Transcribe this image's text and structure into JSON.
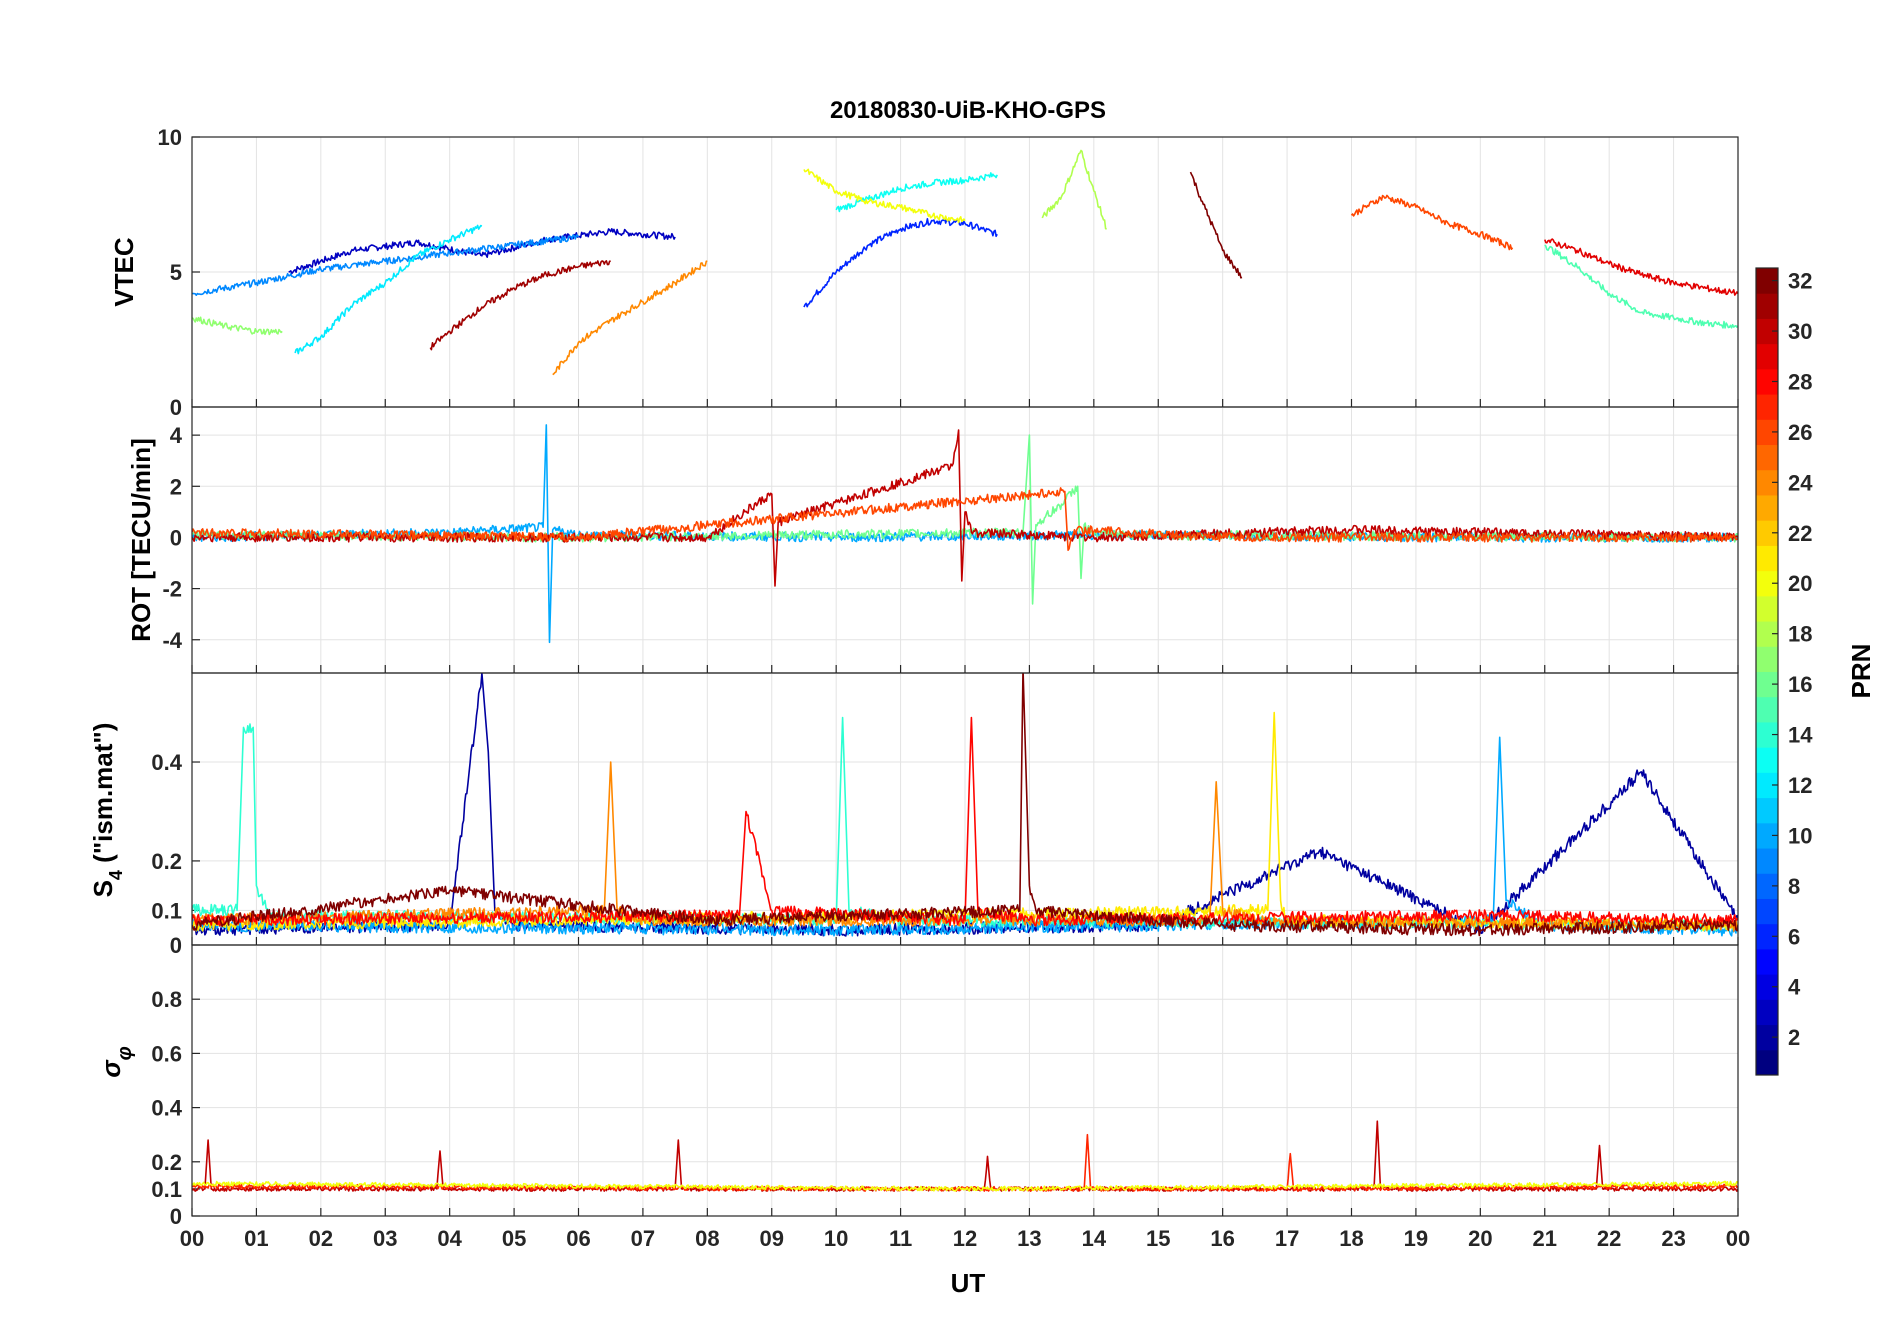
{
  "chart_data": {
    "type": "line",
    "title": "20180830-UiB-KHO-GPS",
    "xlabel": "UT",
    "x_range": [
      0,
      24
    ],
    "x_tick_labels": [
      "00",
      "01",
      "02",
      "03",
      "04",
      "05",
      "06",
      "07",
      "08",
      "09",
      "10",
      "11",
      "12",
      "13",
      "14",
      "15",
      "16",
      "17",
      "18",
      "19",
      "20",
      "21",
      "22",
      "23",
      "00"
    ],
    "colorbar": {
      "label": "PRN",
      "colormap": "jet",
      "range": [
        1,
        32
      ],
      "tick_labels": [
        "2",
        "4",
        "6",
        "8",
        "10",
        "12",
        "14",
        "16",
        "18",
        "20",
        "22",
        "24",
        "26",
        "28",
        "30",
        "32"
      ]
    },
    "panels": [
      {
        "id": "vtec",
        "ylabel": "VTEC",
        "ylim": [
          0,
          10
        ],
        "y_tick_labels": [
          "0",
          "5",
          "10"
        ],
        "series": [
          {
            "prn": 3,
            "x": [
              1.5,
              2.5,
              3.5,
              4.5,
              5.5,
              6.5,
              7.5
            ],
            "y": [
              5.0,
              5.8,
              6.1,
              5.6,
              6.2,
              6.5,
              6.3
            ]
          },
          {
            "prn": 6,
            "x": [
              9.5,
              10.0,
              10.5,
              11.0,
              11.5,
              12.0,
              12.5
            ],
            "y": [
              3.7,
              5.0,
              6.0,
              6.6,
              6.9,
              6.8,
              6.4
            ]
          },
          {
            "prn": 9,
            "x": [
              0.0,
              1.0,
              2.0,
              3.0,
              4.0,
              5.0,
              6.0
            ],
            "y": [
              4.2,
              4.6,
              5.1,
              5.4,
              5.7,
              6.0,
              6.3
            ]
          },
          {
            "prn": 12,
            "x": [
              1.6,
              2.0,
              2.5,
              3.0,
              3.5,
              4.0,
              4.5
            ],
            "y": [
              2.0,
              2.6,
              3.8,
              4.6,
              5.6,
              6.2,
              6.7
            ]
          },
          {
            "prn": 13,
            "x": [
              10.0,
              10.5,
              11.0,
              11.5,
              12.0,
              12.5
            ],
            "y": [
              7.3,
              7.7,
              8.1,
              8.3,
              8.4,
              8.6
            ]
          },
          {
            "prn": 15,
            "x": [
              21.0,
              21.5,
              22.0,
              22.5,
              23.0,
              23.5,
              24.0
            ],
            "y": [
              6.0,
              5.2,
              4.2,
              3.5,
              3.3,
              3.1,
              3.0
            ]
          },
          {
            "prn": 17,
            "x": [
              0.0,
              0.5,
              1.0,
              1.4
            ],
            "y": [
              3.3,
              3.0,
              2.8,
              2.8
            ]
          },
          {
            "prn": 18,
            "x": [
              13.2,
              13.5,
              13.8,
              14.0,
              14.2
            ],
            "y": [
              7.0,
              7.8,
              9.5,
              8.0,
              6.6
            ]
          },
          {
            "prn": 20,
            "x": [
              9.5,
              10.0,
              10.5,
              11.0,
              11.5,
              12.0
            ],
            "y": [
              8.8,
              8.0,
              7.6,
              7.4,
              7.1,
              6.9
            ]
          },
          {
            "prn": 24,
            "x": [
              5.6,
              6.0,
              6.5,
              7.0,
              7.5,
              8.0
            ],
            "y": [
              1.2,
              2.4,
              3.2,
              3.9,
              4.6,
              5.4
            ]
          },
          {
            "prn": 26,
            "x": [
              18.0,
              18.5,
              19.0,
              19.5,
              20.0,
              20.5
            ],
            "y": [
              7.1,
              7.8,
              7.4,
              6.8,
              6.4,
              5.9
            ]
          },
          {
            "prn": 29,
            "x": [
              21.0,
              21.5,
              22.0,
              22.5,
              23.0,
              23.5,
              24.0
            ],
            "y": [
              6.2,
              5.8,
              5.3,
              4.9,
              4.6,
              4.4,
              4.2
            ]
          },
          {
            "prn": 31,
            "x": [
              3.7,
              4.0,
              4.5,
              5.0,
              5.5,
              6.0,
              6.5
            ],
            "y": [
              2.2,
              2.8,
              3.7,
              4.4,
              4.9,
              5.2,
              5.4
            ]
          },
          {
            "prn": 32,
            "x": [
              15.5,
              15.7,
              15.9,
              16.0,
              16.3
            ],
            "y": [
              8.7,
              7.5,
              6.4,
              5.8,
              4.8
            ]
          }
        ]
      },
      {
        "id": "rot",
        "ylabel": "ROT [TECU/min]",
        "ylim": [
          -5.3,
          5.1
        ],
        "y_tick_labels": [
          "-4",
          "-2",
          "0",
          "2",
          "4"
        ],
        "series": [
          {
            "prn": 10,
            "x": [
              0,
              4,
              5.45,
              5.5,
              5.55,
              5.6,
              6,
              10,
              14,
              20,
              24
            ],
            "y": [
              0.0,
              0.2,
              0.4,
              4.4,
              -4.1,
              0.3,
              0.1,
              0.0,
              0.1,
              0.0,
              0.0
            ]
          },
          {
            "prn": 16,
            "x": [
              0,
              6,
              12.9,
              13.0,
              13.05,
              13.1,
              13.5,
              13.75,
              13.8,
              13.85,
              14,
              24
            ],
            "y": [
              0.1,
              0.0,
              0.2,
              4.0,
              -2.6,
              0.5,
              1.3,
              2.0,
              -1.6,
              0.5,
              0.1,
              0.0
            ]
          },
          {
            "prn": 30,
            "x": [
              0,
              8,
              9.0,
              9.05,
              9.1,
              11.8,
              11.9,
              11.95,
              12.0,
              12.1,
              14,
              18,
              24
            ],
            "y": [
              0.0,
              0.0,
              1.7,
              -1.9,
              0.6,
              2.8,
              4.2,
              -1.7,
              1.0,
              0.2,
              0.0,
              0.3,
              0.0
            ]
          },
          {
            "prn": 26,
            "x": [
              0,
              6,
              13.55,
              13.6,
              13.7,
              16,
              24
            ],
            "y": [
              0.2,
              0.0,
              1.8,
              -0.5,
              0.3,
              0.0,
              0.0
            ]
          }
        ]
      },
      {
        "id": "s4",
        "ylabel": "S4 (\"ism.mat\")",
        "ylim": [
          0.03,
          0.58
        ],
        "y_tick_labels": [
          "0",
          "0.1",
          "0.2",
          "0.4"
        ],
        "series": [
          {
            "prn": 2,
            "x": [
              0,
              4,
              4.5,
              4.6,
              4.7,
              5,
              10,
              15,
              17.5,
              20,
              22.5,
              24
            ],
            "y": [
              0.06,
              0.07,
              0.58,
              0.42,
              0.1,
              0.07,
              0.06,
              0.07,
              0.22,
              0.06,
              0.38,
              0.08
            ]
          },
          {
            "prn": 10,
            "x": [
              0,
              10,
              20.2,
              20.3,
              20.4,
              21,
              24
            ],
            "y": [
              0.07,
              0.06,
              0.08,
              0.45,
              0.12,
              0.07,
              0.06
            ]
          },
          {
            "prn": 14,
            "x": [
              0,
              0.7,
              0.8,
              0.95,
              1.0,
              1.2,
              10,
              10.1,
              10.2,
              11,
              24
            ],
            "y": [
              0.1,
              0.1,
              0.47,
              0.47,
              0.15,
              0.09,
              0.08,
              0.49,
              0.1,
              0.08,
              0.07
            ]
          },
          {
            "prn": 21,
            "x": [
              0,
              16.7,
              16.8,
              16.9,
              17,
              24
            ],
            "y": [
              0.07,
              0.1,
              0.5,
              0.12,
              0.08,
              0.07
            ]
          },
          {
            "prn": 24,
            "x": [
              0,
              6.4,
              6.5,
              6.6,
              7,
              15.8,
              15.9,
              16.0,
              16.5,
              24
            ],
            "y": [
              0.08,
              0.1,
              0.4,
              0.1,
              0.08,
              0.08,
              0.36,
              0.1,
              0.08,
              0.07
            ]
          },
          {
            "prn": 28,
            "x": [
              0,
              8.5,
              8.6,
              9,
              12,
              12.1,
              12.2,
              13,
              20,
              24
            ],
            "y": [
              0.08,
              0.09,
              0.3,
              0.1,
              0.08,
              0.49,
              0.1,
              0.08,
              0.09,
              0.08
            ]
          },
          {
            "prn": 32,
            "x": [
              0,
              4,
              8,
              12.85,
              12.9,
              13.0,
              13.1,
              16,
              20,
              24
            ],
            "y": [
              0.07,
              0.14,
              0.08,
              0.1,
              0.59,
              0.15,
              0.1,
              0.07,
              0.06,
              0.07
            ]
          }
        ]
      },
      {
        "id": "sigma_phi",
        "ylabel": "σφ",
        "ylim": [
          0,
          1.0
        ],
        "y_tick_labels": [
          "0",
          "0.1",
          "0.2",
          "0.4",
          "0.6",
          "0.8"
        ],
        "series": [
          {
            "prn": 30,
            "x": [
              0,
              0.2,
              0.25,
              0.3,
              3.8,
              3.85,
              3.9,
              7.5,
              7.55,
              7.6,
              12.3,
              12.35,
              12.4,
              18.35,
              18.4,
              18.45,
              21.8,
              21.85,
              21.9,
              24
            ],
            "y": [
              0.1,
              0.1,
              0.28,
              0.1,
              0.1,
              0.24,
              0.1,
              0.1,
              0.28,
              0.1,
              0.1,
              0.22,
              0.1,
              0.1,
              0.35,
              0.1,
              0.1,
              0.26,
              0.1,
              0.1
            ]
          },
          {
            "prn": 27,
            "x": [
              0,
              10,
              13.85,
              13.9,
              13.95,
              17,
              17.05,
              17.1,
              24
            ],
            "y": [
              0.11,
              0.1,
              0.1,
              0.3,
              0.1,
              0.1,
              0.23,
              0.1,
              0.11
            ]
          },
          {
            "prn": 20,
            "x": [
              0,
              6,
              12,
              18,
              24
            ],
            "y": [
              0.12,
              0.11,
              0.1,
              0.11,
              0.12
            ]
          }
        ]
      }
    ]
  }
}
